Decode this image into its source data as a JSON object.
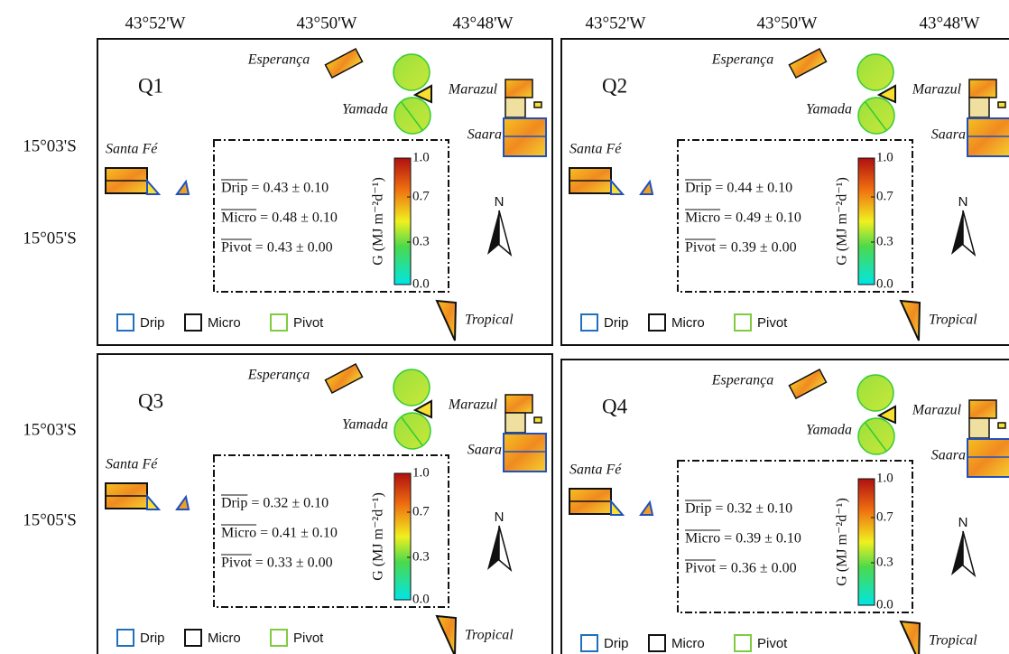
{
  "longitude_columns": [
    {
      "labels": [
        "43°52'W",
        "43°50'W",
        "43°48'W"
      ]
    },
    {
      "labels": [
        "43°52'W",
        "43°50'W",
        "43°48'W"
      ]
    }
  ],
  "latitude_rows": [
    {
      "labels": [
        "15°03'S",
        "15°05'S"
      ]
    },
    {
      "labels": [
        "15°03'S",
        "15°05'S"
      ]
    }
  ],
  "panels": [
    {
      "label": "Q1",
      "farms": {
        "esperanca": "Esperança",
        "yamada": "Yamada",
        "marazul": "Marazul",
        "saara": "Saara",
        "santa_fe": "Santa Fé",
        "tropical": "Tropical"
      },
      "stats": [
        {
          "name": "Drip",
          "value": "= 0.43 ± 0.10"
        },
        {
          "name": "Micro",
          "value": "= 0.48 ± 0.10"
        },
        {
          "name": "Pivot",
          "value": "= 0.43 ± 0.00"
        }
      ],
      "colorbar": {
        "title": "G (MJ m⁻²d⁻¹)",
        "ticks": [
          "1.0",
          "0.7",
          "0.3",
          "0.0"
        ]
      },
      "north": "N",
      "legend": [
        "Drip",
        "Micro",
        "Pivot"
      ]
    },
    {
      "label": "Q2",
      "farms": {
        "esperanca": "Esperança",
        "yamada": "Yamada",
        "marazul": "Marazul",
        "saara": "Saara",
        "santa_fe": "Santa Fé",
        "tropical": "Tropical"
      },
      "stats": [
        {
          "name": "Drip",
          "value": "= 0.44 ± 0.10"
        },
        {
          "name": "Micro",
          "value": "= 0.49 ± 0.10"
        },
        {
          "name": "Pivot",
          "value": "= 0.39 ± 0.00"
        }
      ],
      "colorbar": {
        "title": "G (MJ m⁻²d⁻¹)",
        "ticks": [
          "1.0",
          "0.7",
          "0.3",
          "0.0"
        ]
      },
      "north": "N",
      "legend": [
        "Drip",
        "Micro",
        "Pivot"
      ]
    },
    {
      "label": "Q3",
      "farms": {
        "esperanca": "Esperança",
        "yamada": "Yamada",
        "marazul": "Marazul",
        "saara": "Saara",
        "santa_fe": "Santa Fé",
        "tropical": "Tropical"
      },
      "stats": [
        {
          "name": "Drip",
          "value": "= 0.32 ± 0.10"
        },
        {
          "name": "Micro",
          "value": "= 0.41 ± 0.10"
        },
        {
          "name": "Pivot",
          "value": "= 0.33 ± 0.00"
        }
      ],
      "colorbar": {
        "title": "G (MJ m⁻²d⁻¹)",
        "ticks": [
          "1.0",
          "0.7",
          "0.3",
          "0.0"
        ]
      },
      "north": "N",
      "legend": [
        "Drip",
        "Micro",
        "Pivot"
      ]
    },
    {
      "label": "Q4",
      "farms": {
        "esperanca": "Esperança",
        "yamada": "Yamada",
        "marazul": "Marazul",
        "saara": "Saara",
        "santa_fe": "Santa Fé",
        "tropical": "Tropical"
      },
      "stats": [
        {
          "name": "Drip",
          "value": "= 0.32 ± 0.10"
        },
        {
          "name": "Micro",
          "value": "= 0.39 ± 0.10"
        },
        {
          "name": "Pivot",
          "value": "= 0.36 ± 0.00"
        }
      ],
      "colorbar": {
        "title": "G (MJ m⁻²d⁻¹)",
        "ticks": [
          "1.0",
          "0.7",
          "0.3",
          "0.0"
        ]
      },
      "north": "N",
      "legend": [
        "Drip",
        "Micro",
        "Pivot"
      ]
    }
  ]
}
